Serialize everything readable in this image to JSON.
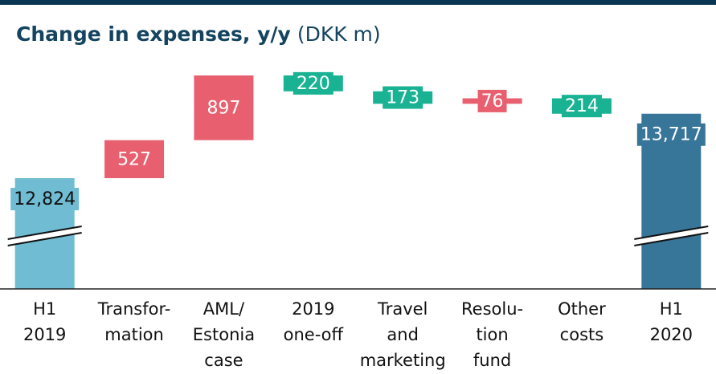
{
  "chart_data": {
    "type": "waterfall",
    "title": "Change in expenses, y/y",
    "unit": "(DKK m)",
    "categories": [
      [
        "H1",
        "2019"
      ],
      [
        "Transfor-",
        "mation"
      ],
      [
        "AML/",
        "Estonia",
        "case"
      ],
      [
        "2019",
        "one-off"
      ],
      [
        "Travel",
        "and",
        "marketing"
      ],
      [
        "Resolu-",
        "tion",
        "fund"
      ],
      [
        "Other",
        "costs"
      ],
      [
        "H1",
        "2020"
      ]
    ],
    "values": [
      12824,
      527,
      897,
      -220,
      -173,
      76,
      -214,
      13717
    ],
    "value_labels": [
      "12,824",
      "527",
      "897",
      "220",
      "173",
      "76",
      "214",
      "13,717"
    ],
    "start_color": "#6fbcd3",
    "end_color": "#377599",
    "increase_color": "#e8606f",
    "decrease_color": "#19b394"
  }
}
